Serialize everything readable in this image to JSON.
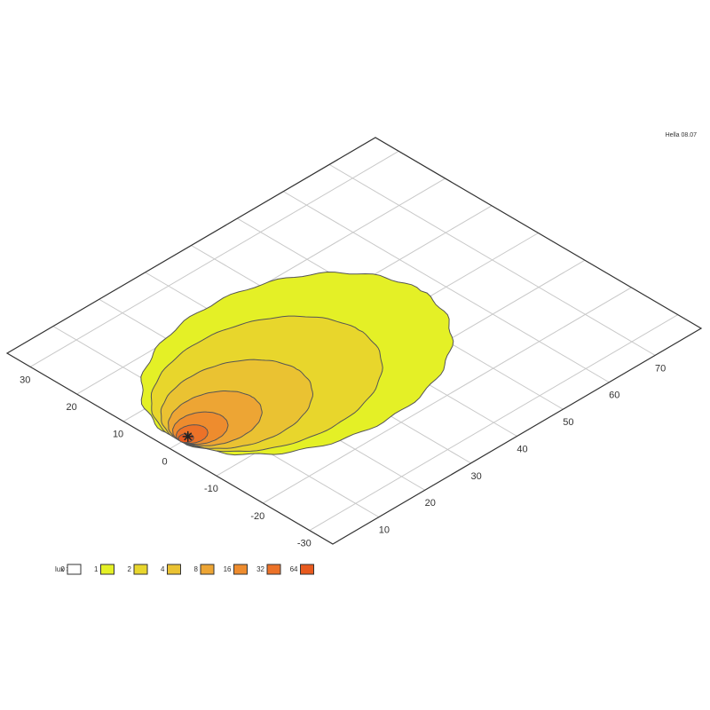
{
  "chart_data": {
    "type": "contour",
    "annotation": "Hella 08.07",
    "xticks": [
      10,
      20,
      30,
      40,
      50,
      60,
      70
    ],
    "xlim": [
      0,
      80
    ],
    "yticks": [
      30,
      20,
      10,
      0,
      -10,
      -20,
      -30
    ],
    "ylim": [
      -35,
      35
    ],
    "grid": true,
    "legend": {
      "title": "lux >=",
      "levels": [
        0,
        1,
        2,
        4,
        8,
        16,
        32,
        64
      ],
      "colors": [
        "#ffffff",
        "#e4f026",
        "#e8d62c",
        "#eac232",
        "#eda534",
        "#ee8c2e",
        "#ec7228",
        "#e85a1e"
      ]
    }
  }
}
